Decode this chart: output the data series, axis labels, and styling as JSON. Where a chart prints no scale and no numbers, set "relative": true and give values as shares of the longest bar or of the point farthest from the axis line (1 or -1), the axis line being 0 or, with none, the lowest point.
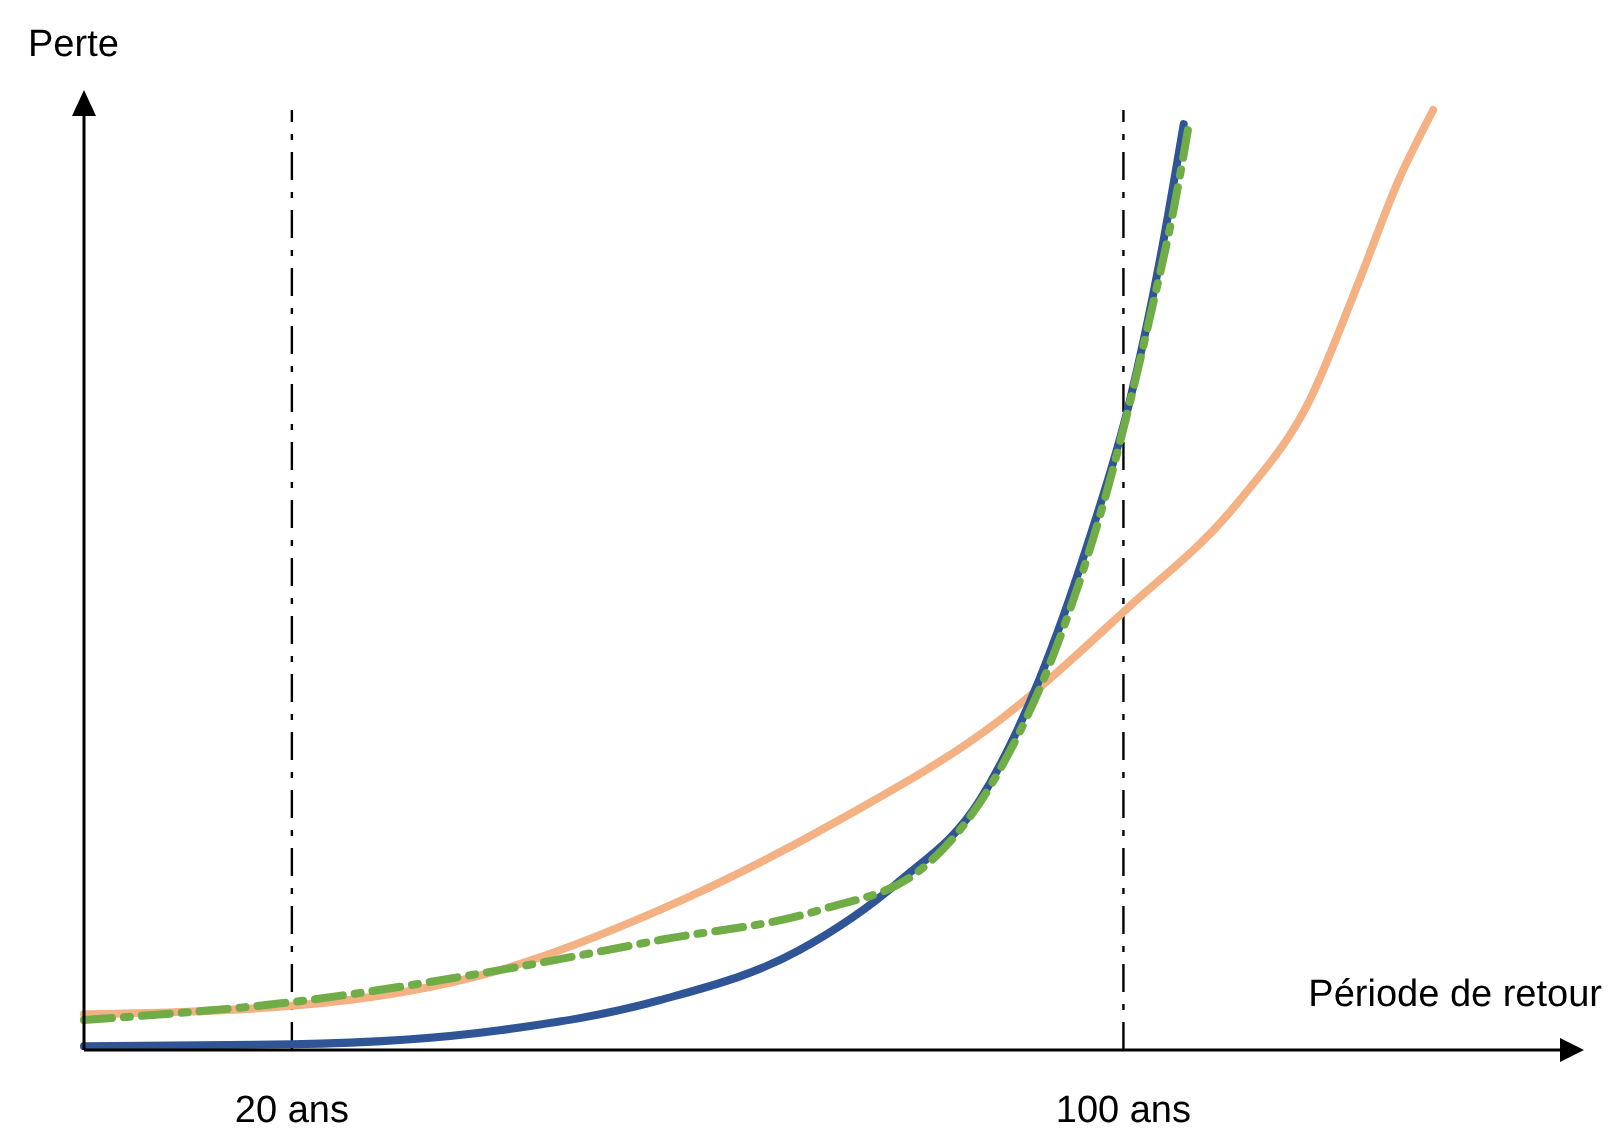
{
  "chart_data": {
    "type": "line",
    "relative": true,
    "xlabel": "Période de retour",
    "ylabel": "Perte",
    "xlim": [
      0,
      142
    ],
    "xticks": [
      {
        "value": 20,
        "label": "20 ans"
      },
      {
        "value": 100,
        "label": "100 ans"
      }
    ],
    "series": [
      {
        "color": "#f4b183",
        "line_style": "solid",
        "x": [
          0,
          20,
          40,
          55.4,
          72.7,
          88.1,
          100.2,
          111.2,
          117.9,
          122.7,
          126.5,
          129.8
        ],
        "values": [
          0.038,
          0.047,
          0.085,
          0.149,
          0.245,
          0.351,
          0.468,
          0.585,
          0.691,
          0.819,
          0.926,
          1
        ]
      },
      {
        "color": "#2f5597",
        "line_style": "solid",
        "x": [
          0,
          20,
          40,
          55.4,
          68.8,
          78.5,
          86.2,
          91.9,
          96.7,
          100.6,
          103.5,
          105.8
        ],
        "values": [
          0.004,
          0.006,
          0.021,
          0.053,
          0.106,
          0.18,
          0.266,
          0.394,
          0.543,
          0.69,
          0.84,
          0.985
        ]
      },
      {
        "color": "#70ad47",
        "line_style": "dashed",
        "x": [
          0,
          20,
          40,
          55.4,
          70.8,
          80.4,
          88.1,
          93.8,
          98.7,
          102.5,
          105,
          106.3
        ],
        "values": [
          0.032,
          0.051,
          0.085,
          0.117,
          0.149,
          0.191,
          0.298,
          0.436,
          0.606,
          0.777,
          0.904,
          0.985
        ]
      }
    ],
    "ref_lines": [
      {
        "axis": "x",
        "value": 20,
        "line_style": "dashed"
      },
      {
        "axis": "x",
        "value": 100,
        "line_style": "dashed"
      }
    ]
  }
}
